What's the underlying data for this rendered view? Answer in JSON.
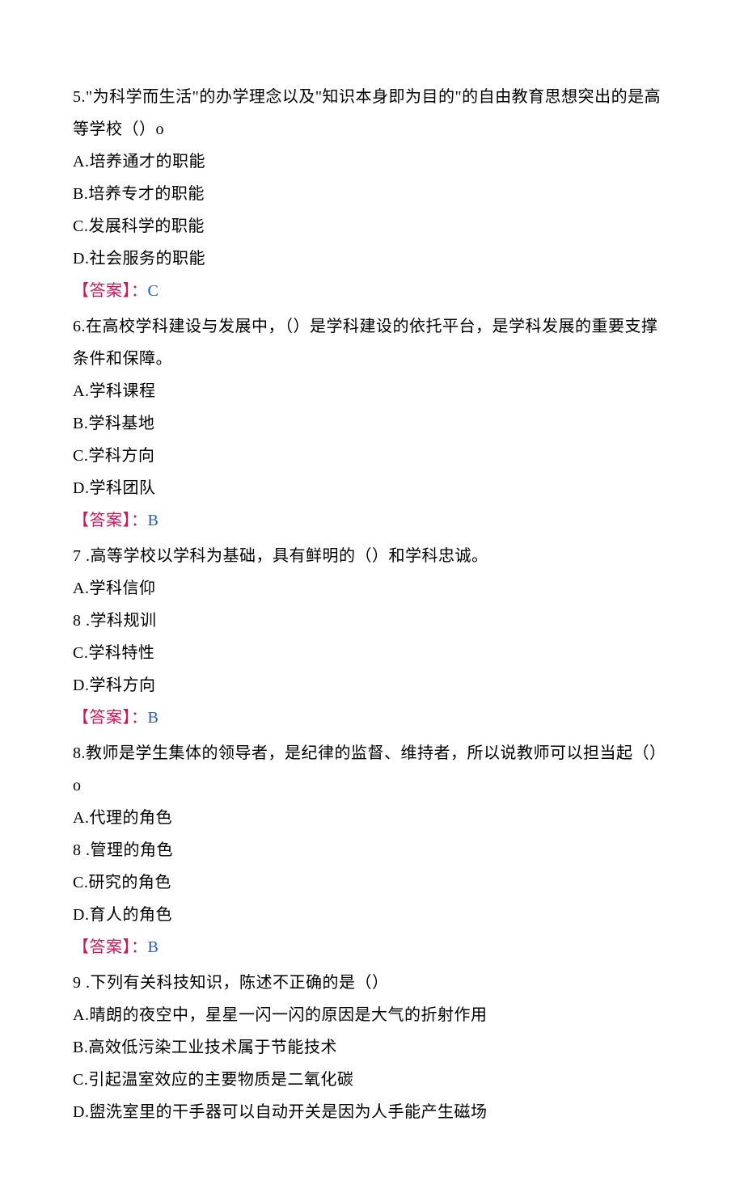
{
  "colors": {
    "text": "#000000",
    "answer_bracket": "#d4145a",
    "answer_value": "#1e5fbf",
    "background": "#ffffff"
  },
  "typography": {
    "font_family": "SimSun",
    "font_size_pt": 15,
    "line_height": 2.0
  },
  "questions": [
    {
      "number": "5.",
      "text": "\"为科学而生活\"的办学理念以及\"知识本身即为目的\"的自由教育思想突出的是高等学校（）o",
      "options": [
        {
          "label": "A.",
          "text": "培养通才的职能"
        },
        {
          "label": "B.",
          "text": "培养专才的职能"
        },
        {
          "label": "C.",
          "text": "发展科学的职能"
        },
        {
          "label": "D.",
          "text": "社会服务的职能"
        }
      ],
      "answer_label": "【答案】：",
      "answer": "C"
    },
    {
      "number": "6.",
      "text": "在高校学科建设与发展中，（）是学科建设的依托平台，是学科发展的重要支撑条件和保障。",
      "options": [
        {
          "label": "A.",
          "text": "学科课程"
        },
        {
          "label": "B.",
          "text": "学科基地"
        },
        {
          "label": "C.",
          "text": "学科方向"
        },
        {
          "label": "D.",
          "text": "学科团队"
        }
      ],
      "answer_label": "【答案】：",
      "answer": "B"
    },
    {
      "number": "7",
      "text": " .高等学校以学科为基础，具有鲜明的（）和学科忠诚。",
      "options": [
        {
          "label": "A.",
          "text": "学科信仰"
        },
        {
          "label": "8",
          "text": " .学科规训"
        },
        {
          "label": "C.",
          "text": "学科特性"
        },
        {
          "label": "D.",
          "text": "学科方向"
        }
      ],
      "answer_label": "【答案】：",
      "answer": "B"
    },
    {
      "number": "8.",
      "text": "教师是学生集体的领导者，是纪律的监督、维持者，所以说教师可以担当起（）o",
      "options": [
        {
          "label": "A.",
          "text": "代理的角色"
        },
        {
          "label": "8",
          "text": " .管理的角色"
        },
        {
          "label": "C.",
          "text": "研究的角色"
        },
        {
          "label": "D.",
          "text": "育人的角色"
        }
      ],
      "answer_label": "【答案】：",
      "answer": "B"
    },
    {
      "number": "9",
      "text": " .下列有关科技知识，陈述不正确的是（）",
      "options": [
        {
          "label": "A.",
          "text": "晴朗的夜空中，星星一闪一闪的原因是大气的折射作用"
        },
        {
          "label": "B.",
          "text": "高效低污染工业技术属于节能技术"
        },
        {
          "label": "C.",
          "text": "引起温室效应的主要物质是二氧化碳"
        },
        {
          "label": "D.",
          "text": "盥洗室里的干手器可以自动开关是因为人手能产生磁场"
        }
      ],
      "answer_label": "",
      "answer": ""
    }
  ]
}
